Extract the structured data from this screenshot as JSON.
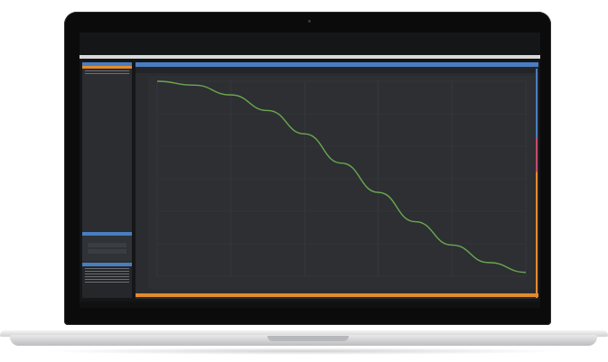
{
  "colors": {
    "accent_blue": "#4a7dc0",
    "accent_orange": "#e38b2c",
    "accent_pink": "#c74a6a",
    "curve_green": "#6aa84f",
    "plot_bg": "#2d2f33"
  },
  "chart_data": {
    "type": "line",
    "title": "",
    "xlabel": "",
    "ylabel": "",
    "series": [
      {
        "values_x": [
          0,
          0.1,
          0.2,
          0.3,
          0.4,
          0.5,
          0.6,
          0.7,
          0.8,
          0.9,
          1.0
        ],
        "values_y": [
          1.0,
          0.98,
          0.93,
          0.85,
          0.73,
          0.58,
          0.43,
          0.28,
          0.16,
          0.07,
          0.02
        ]
      }
    ],
    "grid": true
  }
}
